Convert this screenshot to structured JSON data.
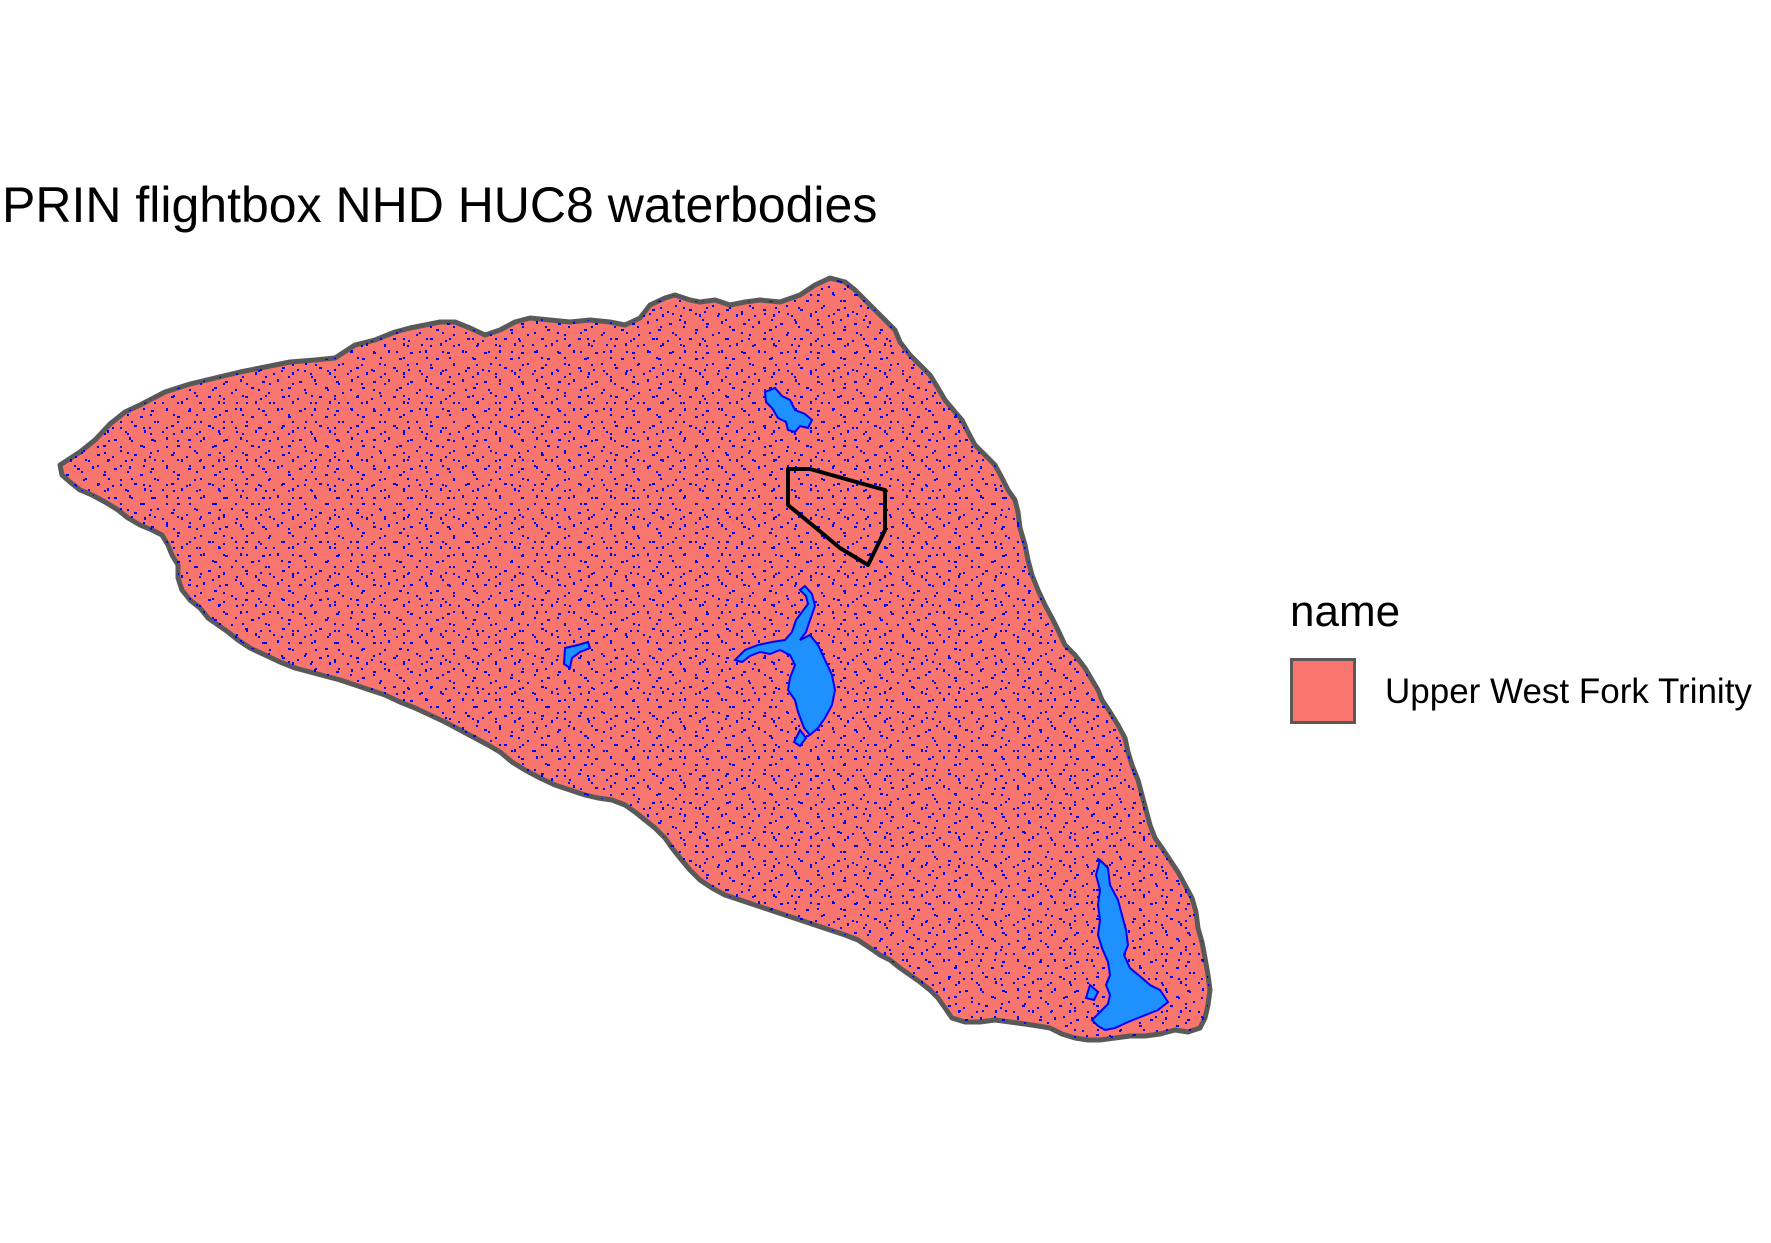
{
  "title": "PRIN flightbox NHD HUC8 waterbodies",
  "legend": {
    "title": "name",
    "entries": [
      {
        "label": "Upper West Fork Trinity",
        "color": "#F8766D"
      }
    ]
  },
  "colors": {
    "watershed_fill": "#F8766D",
    "watershed_outline": "#595959",
    "small_waterbodies": "#0000FF",
    "large_waterbodies": "#1E90FF",
    "flightbox_outline": "#000000"
  }
}
